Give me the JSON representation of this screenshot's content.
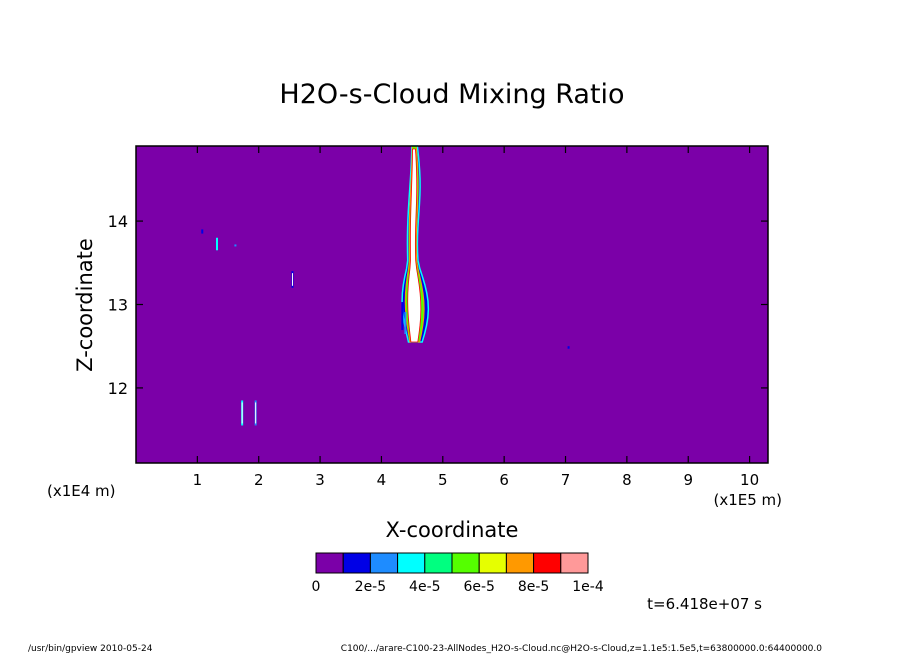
{
  "chart_data": {
    "type": "heatmap",
    "title": "H2O-s-Cloud Mixing Ratio",
    "xlabel": "X-coordinate",
    "ylabel": "Z-coordinate",
    "x_unit": "(x1E5 m)",
    "y_unit": "(x1E4 m)",
    "xlim": [
      0,
      10.3
    ],
    "ylim": [
      11.1,
      14.9
    ],
    "x_ticks": [
      "1",
      "2",
      "3",
      "4",
      "5",
      "6",
      "7",
      "8",
      "9",
      "10"
    ],
    "y_ticks": [
      "12",
      "13",
      "14"
    ],
    "background_value": 0,
    "colorbar": {
      "colors": [
        "#7b00a8",
        "#0000e6",
        "#1e8cff",
        "#00ffff",
        "#00ff80",
        "#55ff00",
        "#e6ff00",
        "#ff9900",
        "#ff0000",
        "#ff9999"
      ],
      "labels": [
        "0",
        "2e-5",
        "4e-5",
        "6e-5",
        "8e-5",
        "1e-4"
      ]
    },
    "features": [
      {
        "kind": "plume",
        "x": 4.52,
        "z_bottom": 12.55,
        "z_top": 14.9
      },
      {
        "kind": "streak",
        "x": 1.08,
        "z_bottom": 13.85,
        "z_top": 13.9
      },
      {
        "kind": "streak",
        "x": 1.32,
        "z_bottom": 13.65,
        "z_top": 13.8
      },
      {
        "kind": "streak",
        "x": 1.62,
        "z_bottom": 13.7,
        "z_top": 13.72
      },
      {
        "kind": "streak",
        "x": 2.55,
        "z_bottom": 13.2,
        "z_top": 13.4
      },
      {
        "kind": "streak",
        "x": 1.73,
        "z_bottom": 11.55,
        "z_top": 11.85
      },
      {
        "kind": "streak",
        "x": 1.95,
        "z_bottom": 11.55,
        "z_top": 11.85
      },
      {
        "kind": "streak",
        "x": 7.05,
        "z_bottom": 12.47,
        "z_top": 12.5
      }
    ],
    "time_label": "t=6.418e+07 s"
  },
  "footer": {
    "left": "/usr/bin/gpview  2010-05-24",
    "right": "C100/.../arare-C100-23-AllNodes_H2O-s-Cloud.nc@H2O-s-Cloud,z=1.1e5:1.5e5,t=63800000.0:64400000.0"
  }
}
